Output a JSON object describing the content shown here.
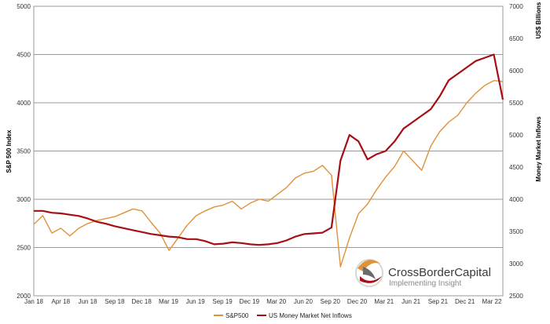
{
  "chart_data": {
    "type": "line",
    "x_ticks": [
      "Jan 18",
      "Apr 18",
      "Jun 18",
      "Sep 18",
      "Dec 18",
      "Mar 19",
      "Jun 19",
      "Sep 19",
      "Dec 19",
      "Mar 20",
      "Jun 20",
      "Sep 20",
      "Dec 20",
      "Mar 21",
      "Jun 21",
      "Sep 21",
      "Dec 21",
      "Mar 22"
    ],
    "y_left": {
      "label": "S&P 500 Index",
      "min": 2000,
      "max": 5000,
      "ticks": [
        "2000",
        "2500",
        "3000",
        "3500",
        "4000",
        "4500",
        "5000"
      ]
    },
    "y_right": {
      "label": "Money Market Inflows",
      "unit_label": "US$ Billions",
      "min": 2500,
      "max": 7000,
      "ticks": [
        "2500",
        "3000",
        "3500",
        "4000",
        "4500",
        "5000",
        "5500",
        "6000",
        "6500",
        "7000"
      ]
    },
    "grid": true,
    "legend_position": "bottom",
    "series": [
      {
        "name": "S&P500",
        "axis": "left",
        "color": "#E0913A",
        "x": [
          0,
          1,
          2,
          3,
          4,
          5,
          6,
          7,
          8,
          9,
          10,
          11,
          12,
          13,
          14,
          15,
          16,
          17,
          18,
          19,
          20,
          21,
          22,
          23,
          24,
          25,
          26,
          27,
          28,
          29,
          30,
          31,
          32,
          33,
          34,
          35,
          36,
          37,
          38,
          39,
          40,
          41,
          42,
          43,
          44,
          45,
          46,
          47,
          48,
          49,
          50,
          51,
          52
        ],
        "values": [
          2740,
          2830,
          2650,
          2700,
          2620,
          2700,
          2750,
          2780,
          2800,
          2820,
          2860,
          2900,
          2880,
          2760,
          2650,
          2470,
          2600,
          2730,
          2830,
          2880,
          2920,
          2940,
          2980,
          2900,
          2960,
          3000,
          2980,
          3050,
          3120,
          3220,
          3270,
          3290,
          3350,
          3250,
          2300,
          2600,
          2850,
          2950,
          3100,
          3230,
          3340,
          3500,
          3400,
          3300,
          3550,
          3700,
          3800,
          3870,
          4000,
          4100,
          4180,
          4230,
          4220
        ]
      },
      {
        "name": "US Money Market Net Inflows",
        "axis": "right",
        "color": "#A60F14",
        "x": [
          0,
          1,
          2,
          3,
          4,
          5,
          6,
          7,
          8,
          9,
          10,
          11,
          12,
          13,
          14,
          15,
          16,
          17,
          18,
          19,
          20,
          21,
          22,
          23,
          24,
          25,
          26,
          27,
          28,
          29,
          30,
          31,
          32,
          33,
          34,
          35,
          36,
          37,
          38,
          39,
          40,
          41,
          42,
          43,
          44,
          45,
          46,
          47,
          48,
          49,
          50,
          51,
          52
        ],
        "values": [
          3820,
          3820,
          3790,
          3780,
          3760,
          3740,
          3700,
          3650,
          3620,
          3580,
          3550,
          3520,
          3490,
          3460,
          3440,
          3420,
          3410,
          3380,
          3380,
          3350,
          3300,
          3310,
          3330,
          3320,
          3300,
          3290,
          3300,
          3320,
          3360,
          3420,
          3460,
          3470,
          3480,
          3560,
          4600,
          5000,
          4900,
          4620,
          4700,
          4750,
          4900,
          5100,
          5200,
          5300,
          5400,
          5600,
          5850,
          5950,
          6050,
          6150,
          6200,
          6250,
          5550
        ]
      }
    ]
  },
  "legend": [
    {
      "label": "S&P500",
      "color": "#E0913A"
    },
    {
      "label": "US Money Market Net Inflows",
      "color": "#A60F14"
    }
  ],
  "logo": {
    "name_a": "CrossBorder",
    "name_b": "Capital",
    "tagline": "Implementing Insight"
  }
}
